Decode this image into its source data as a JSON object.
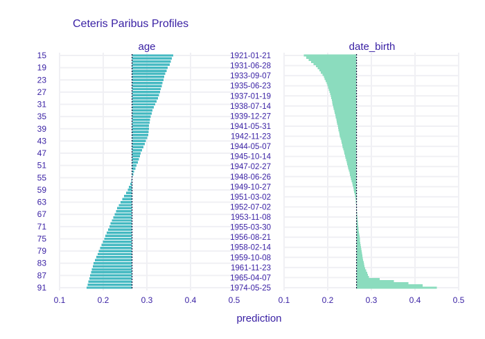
{
  "chart_data": {
    "type": "bar",
    "title": "Ceteris Paribus Profiles",
    "xlabel": "prediction",
    "xlim": [
      0.1,
      0.5
    ],
    "x_ticks": [
      "0.1",
      "0.2",
      "0.3",
      "0.4",
      "0.5"
    ],
    "reference_prediction": 0.266,
    "grid": true,
    "colors": {
      "age_bars": "#46bac2",
      "date_birth_profile": "#8bdcbe",
      "reference_line": "#160e3b",
      "text": "#371ea3"
    },
    "panels": [
      {
        "name": "age",
        "orientation": "horizontal",
        "categories": [
          "15",
          "16",
          "17",
          "18",
          "19",
          "20",
          "21",
          "22",
          "23",
          "24",
          "25",
          "26",
          "27",
          "28",
          "29",
          "30",
          "31",
          "32",
          "33",
          "34",
          "35",
          "36",
          "37",
          "38",
          "39",
          "40",
          "41",
          "42",
          "43",
          "44",
          "45",
          "46",
          "47",
          "48",
          "49",
          "50",
          "51",
          "52",
          "53",
          "54",
          "55",
          "56",
          "57",
          "58",
          "59",
          "60",
          "61",
          "62",
          "63",
          "64",
          "65",
          "66",
          "67",
          "68",
          "69",
          "70",
          "71",
          "72",
          "73",
          "74",
          "75",
          "76",
          "77",
          "78",
          "79",
          "80",
          "81",
          "82",
          "83",
          "84",
          "85",
          "86",
          "87",
          "88",
          "89",
          "90",
          "91"
        ],
        "y_tick_labels": [
          "15",
          "19",
          "23",
          "27",
          "31",
          "35",
          "39",
          "43",
          "47",
          "51",
          "55",
          "59",
          "63",
          "67",
          "71",
          "75",
          "79",
          "83",
          "87",
          "91"
        ],
        "values": [
          0.36,
          0.357,
          0.355,
          0.352,
          0.348,
          0.345,
          0.342,
          0.34,
          0.338,
          0.336,
          0.334,
          0.332,
          0.33,
          0.328,
          0.325,
          0.322,
          0.319,
          0.316,
          0.313,
          0.311,
          0.309,
          0.307,
          0.306,
          0.305,
          0.305,
          0.304,
          0.303,
          0.301,
          0.298,
          0.295,
          0.292,
          0.289,
          0.286,
          0.284,
          0.282,
          0.279,
          0.276,
          0.274,
          0.271,
          0.269,
          0.266,
          0.264,
          0.262,
          0.259,
          0.256,
          0.252,
          0.248,
          0.244,
          0.24,
          0.236,
          0.232,
          0.229,
          0.226,
          0.223,
          0.22,
          0.217,
          0.214,
          0.211,
          0.208,
          0.205,
          0.202,
          0.199,
          0.196,
          0.193,
          0.19,
          0.187,
          0.184,
          0.181,
          0.178,
          0.176,
          0.174,
          0.172,
          0.17,
          0.168,
          0.166,
          0.164,
          0.162
        ]
      },
      {
        "name": "date_birth",
        "orientation": "horizontal",
        "y_tick_labels": [
          "1921-01-21",
          "1931-06-28",
          "1933-09-07",
          "1935-06-23",
          "1937-01-19",
          "1938-07-14",
          "1939-12-27",
          "1941-05-31",
          "1942-11-23",
          "1944-05-07",
          "1945-10-14",
          "1947-02-27",
          "1948-06-26",
          "1949-10-27",
          "1951-03-02",
          "1952-07-02",
          "1953-11-08",
          "1955-03-30",
          "1956-08-21",
          "1958-02-14",
          "1959-10-08",
          "1961-11-23",
          "1965-04-07",
          "1974-05-25"
        ],
        "values": [
          0.145,
          0.172,
          0.19,
          0.2,
          0.207,
          0.212,
          0.218,
          0.223,
          0.228,
          0.234,
          0.24,
          0.246,
          0.252,
          0.258,
          0.263,
          0.266,
          0.268,
          0.27,
          0.273,
          0.276,
          0.28,
          0.285,
          0.295,
          0.45
        ]
      }
    ]
  }
}
